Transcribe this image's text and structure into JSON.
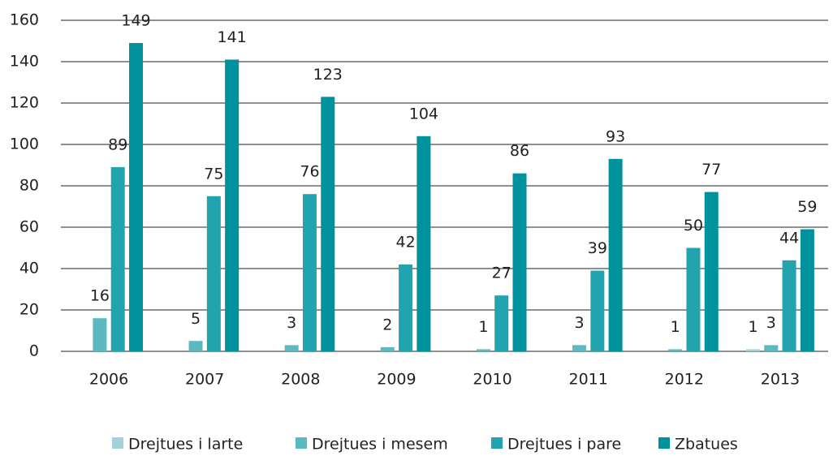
{
  "chart_data": {
    "type": "bar",
    "categories": [
      "2006",
      "2007",
      "2008",
      "2009",
      "2010",
      "2011",
      "2012",
      "2013"
    ],
    "series": [
      {
        "name": "Drejtues i larte",
        "color": "#a3d3d9",
        "values": [
          null,
          null,
          null,
          null,
          null,
          null,
          null,
          1
        ]
      },
      {
        "name": "Drejtues i mesem",
        "color": "#5cb8c1",
        "values": [
          16,
          5,
          3,
          2,
          1,
          3,
          1,
          3
        ]
      },
      {
        "name": "Drejtues i pare",
        "color": "#22a4ae",
        "values": [
          89,
          75,
          76,
          42,
          27,
          39,
          50,
          44
        ]
      },
      {
        "name": "Zbatues",
        "color": "#00929c",
        "values": [
          149,
          141,
          123,
          104,
          86,
          93,
          77,
          59
        ]
      }
    ],
    "ylim": [
      0,
      160
    ],
    "yticks": [
      0,
      20,
      40,
      60,
      80,
      100,
      120,
      140,
      160
    ],
    "grid": true,
    "legend": "bottom"
  }
}
